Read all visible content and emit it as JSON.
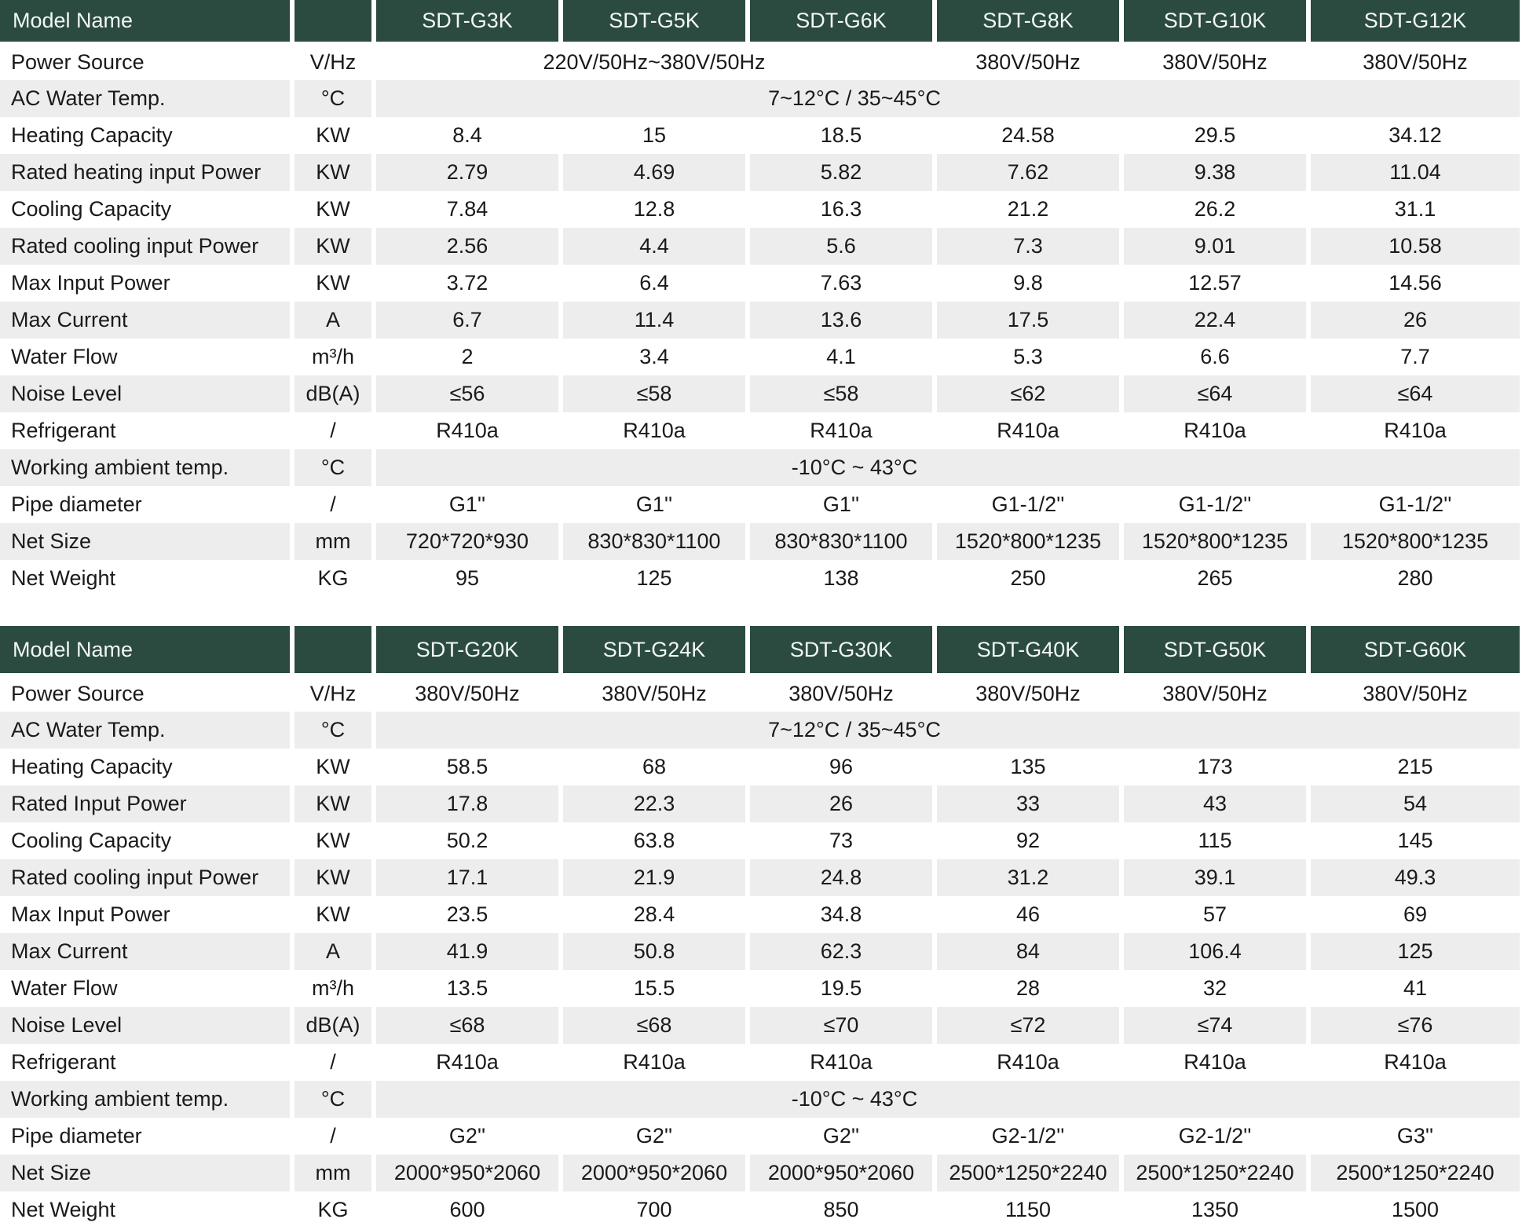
{
  "tables": [
    {
      "header_label": "Model Name",
      "models": [
        "SDT-G3K",
        "SDT-G5K",
        "SDT-G6K",
        "SDT-G8K",
        "SDT-G10K",
        "SDT-G12K"
      ],
      "rows": [
        {
          "label": "Power Source",
          "unit": "V/Hz",
          "cells": [
            {
              "text": "220V/50Hz~380V/50Hz",
              "span": 3
            },
            {
              "text": "380V/50Hz"
            },
            {
              "text": "380V/50Hz"
            },
            {
              "text": "380V/50Hz"
            }
          ]
        },
        {
          "label": "AC Water Temp.",
          "unit": "°C",
          "cells": [
            {
              "text": "7~12°C / 35~45°C",
              "span": 6
            }
          ]
        },
        {
          "label": "Heating Capacity",
          "unit": "KW",
          "cells": [
            {
              "text": "8.4"
            },
            {
              "text": "15"
            },
            {
              "text": "18.5"
            },
            {
              "text": "24.58"
            },
            {
              "text": "29.5"
            },
            {
              "text": "34.12"
            }
          ]
        },
        {
          "label": "Rated heating input Power",
          "unit": "KW",
          "cells": [
            {
              "text": "2.79"
            },
            {
              "text": "4.69"
            },
            {
              "text": "5.82"
            },
            {
              "text": "7.62"
            },
            {
              "text": "9.38"
            },
            {
              "text": "11.04"
            }
          ]
        },
        {
          "label": "Cooling Capacity",
          "unit": "KW",
          "cells": [
            {
              "text": "7.84"
            },
            {
              "text": "12.8"
            },
            {
              "text": "16.3"
            },
            {
              "text": "21.2"
            },
            {
              "text": "26.2"
            },
            {
              "text": "31.1"
            }
          ]
        },
        {
          "label": "Rated cooling input Power",
          "unit": "KW",
          "cells": [
            {
              "text": "2.56"
            },
            {
              "text": "4.4"
            },
            {
              "text": "5.6"
            },
            {
              "text": "7.3"
            },
            {
              "text": "9.01"
            },
            {
              "text": "10.58"
            }
          ]
        },
        {
          "label": "Max Input Power",
          "unit": "KW",
          "cells": [
            {
              "text": "3.72"
            },
            {
              "text": "6.4"
            },
            {
              "text": "7.63"
            },
            {
              "text": "9.8"
            },
            {
              "text": "12.57"
            },
            {
              "text": "14.56"
            }
          ]
        },
        {
          "label": "Max Current",
          "unit": "A",
          "cells": [
            {
              "text": "6.7"
            },
            {
              "text": "11.4"
            },
            {
              "text": "13.6"
            },
            {
              "text": "17.5"
            },
            {
              "text": "22.4"
            },
            {
              "text": "26"
            }
          ]
        },
        {
          "label": "Water Flow",
          "unit": "m³/h",
          "cells": [
            {
              "text": "2"
            },
            {
              "text": "3.4"
            },
            {
              "text": "4.1"
            },
            {
              "text": "5.3"
            },
            {
              "text": "6.6"
            },
            {
              "text": "7.7"
            }
          ]
        },
        {
          "label": "Noise Level",
          "unit": "dB(A)",
          "cells": [
            {
              "text": "≤56"
            },
            {
              "text": "≤58"
            },
            {
              "text": "≤58"
            },
            {
              "text": "≤62"
            },
            {
              "text": "≤64"
            },
            {
              "text": "≤64"
            }
          ]
        },
        {
          "label": "Refrigerant",
          "unit": "/",
          "cells": [
            {
              "text": "R410a"
            },
            {
              "text": "R410a"
            },
            {
              "text": "R410a"
            },
            {
              "text": "R410a"
            },
            {
              "text": "R410a"
            },
            {
              "text": "R410a"
            }
          ]
        },
        {
          "label": "Working ambient temp.",
          "unit": "°C",
          "cells": [
            {
              "text": "-10°C ~ 43°C",
              "span": 6
            }
          ]
        },
        {
          "label": "Pipe diameter",
          "unit": "/",
          "cells": [
            {
              "text": "G1''"
            },
            {
              "text": "G1''"
            },
            {
              "text": "G1''"
            },
            {
              "text": "G1-1/2''"
            },
            {
              "text": "G1-1/2''"
            },
            {
              "text": "G1-1/2''"
            }
          ]
        },
        {
          "label": "Net Size",
          "unit": "mm",
          "cells": [
            {
              "text": "720*720*930"
            },
            {
              "text": "830*830*1100"
            },
            {
              "text": "830*830*1100"
            },
            {
              "text": "1520*800*1235"
            },
            {
              "text": "1520*800*1235"
            },
            {
              "text": "1520*800*1235"
            }
          ]
        },
        {
          "label": "Net Weight",
          "unit": "KG",
          "cells": [
            {
              "text": "95"
            },
            {
              "text": "125"
            },
            {
              "text": "138"
            },
            {
              "text": "250"
            },
            {
              "text": "265"
            },
            {
              "text": "280"
            }
          ]
        }
      ]
    },
    {
      "header_label": "Model Name",
      "models": [
        "SDT-G20K",
        "SDT-G24K",
        "SDT-G30K",
        "SDT-G40K",
        "SDT-G50K",
        "SDT-G60K"
      ],
      "rows": [
        {
          "label": "Power Source",
          "unit": "V/Hz",
          "cells": [
            {
              "text": "380V/50Hz"
            },
            {
              "text": "380V/50Hz"
            },
            {
              "text": "380V/50Hz"
            },
            {
              "text": "380V/50Hz"
            },
            {
              "text": "380V/50Hz"
            },
            {
              "text": "380V/50Hz"
            }
          ]
        },
        {
          "label": "AC Water Temp.",
          "unit": "°C",
          "cells": [
            {
              "text": "7~12°C / 35~45°C",
              "span": 6
            }
          ]
        },
        {
          "label": "Heating Capacity",
          "unit": "KW",
          "cells": [
            {
              "text": "58.5"
            },
            {
              "text": "68"
            },
            {
              "text": "96"
            },
            {
              "text": "135"
            },
            {
              "text": "173"
            },
            {
              "text": "215"
            }
          ]
        },
        {
          "label": "Rated Input Power",
          "unit": "KW",
          "cells": [
            {
              "text": "17.8"
            },
            {
              "text": "22.3"
            },
            {
              "text": "26"
            },
            {
              "text": "33"
            },
            {
              "text": "43"
            },
            {
              "text": "54"
            }
          ]
        },
        {
          "label": "Cooling Capacity",
          "unit": "KW",
          "cells": [
            {
              "text": "50.2"
            },
            {
              "text": "63.8"
            },
            {
              "text": "73"
            },
            {
              "text": "92"
            },
            {
              "text": "115"
            },
            {
              "text": "145"
            }
          ]
        },
        {
          "label": "Rated cooling input Power",
          "unit": "KW",
          "cells": [
            {
              "text": "17.1"
            },
            {
              "text": "21.9"
            },
            {
              "text": "24.8"
            },
            {
              "text": "31.2"
            },
            {
              "text": "39.1"
            },
            {
              "text": "49.3"
            }
          ]
        },
        {
          "label": "Max Input Power",
          "unit": "KW",
          "cells": [
            {
              "text": "23.5"
            },
            {
              "text": "28.4"
            },
            {
              "text": "34.8"
            },
            {
              "text": "46"
            },
            {
              "text": "57"
            },
            {
              "text": "69"
            }
          ]
        },
        {
          "label": "Max Current",
          "unit": "A",
          "cells": [
            {
              "text": "41.9"
            },
            {
              "text": "50.8"
            },
            {
              "text": "62.3"
            },
            {
              "text": "84"
            },
            {
              "text": "106.4"
            },
            {
              "text": "125"
            }
          ]
        },
        {
          "label": "Water Flow",
          "unit": "m³/h",
          "cells": [
            {
              "text": "13.5"
            },
            {
              "text": "15.5"
            },
            {
              "text": "19.5"
            },
            {
              "text": "28"
            },
            {
              "text": "32"
            },
            {
              "text": "41"
            }
          ]
        },
        {
          "label": "Noise Level",
          "unit": "dB(A)",
          "cells": [
            {
              "text": "≤68"
            },
            {
              "text": "≤68"
            },
            {
              "text": "≤70"
            },
            {
              "text": "≤72"
            },
            {
              "text": "≤74"
            },
            {
              "text": "≤76"
            }
          ]
        },
        {
          "label": "Refrigerant",
          "unit": "/",
          "cells": [
            {
              "text": "R410a"
            },
            {
              "text": "R410a"
            },
            {
              "text": "R410a"
            },
            {
              "text": "R410a"
            },
            {
              "text": "R410a"
            },
            {
              "text": "R410a"
            }
          ]
        },
        {
          "label": "Working ambient temp.",
          "unit": "°C",
          "cells": [
            {
              "text": "-10°C ~ 43°C",
              "span": 6
            }
          ]
        },
        {
          "label": "Pipe diameter",
          "unit": "/",
          "cells": [
            {
              "text": "G2''"
            },
            {
              "text": "G2''"
            },
            {
              "text": "G2''"
            },
            {
              "text": "G2-1/2''"
            },
            {
              "text": "G2-1/2''"
            },
            {
              "text": "G3''"
            }
          ]
        },
        {
          "label": "Net Size",
          "unit": "mm",
          "cells": [
            {
              "text": "2000*950*2060"
            },
            {
              "text": "2000*950*2060"
            },
            {
              "text": "2000*950*2060"
            },
            {
              "text": "2500*1250*2240"
            },
            {
              "text": "2500*1250*2240"
            },
            {
              "text": "2500*1250*2240"
            }
          ]
        },
        {
          "label": "Net Weight",
          "unit": "KG",
          "cells": [
            {
              "text": "600"
            },
            {
              "text": "700"
            },
            {
              "text": "850"
            },
            {
              "text": "1150"
            },
            {
              "text": "1350"
            },
            {
              "text": "1500"
            }
          ]
        }
      ]
    }
  ],
  "colors": {
    "header_bg": "#2b4b41",
    "header_text": "#f3f7f5",
    "stripe_bg": "#ededed",
    "body_text": "#1a1a1a"
  }
}
